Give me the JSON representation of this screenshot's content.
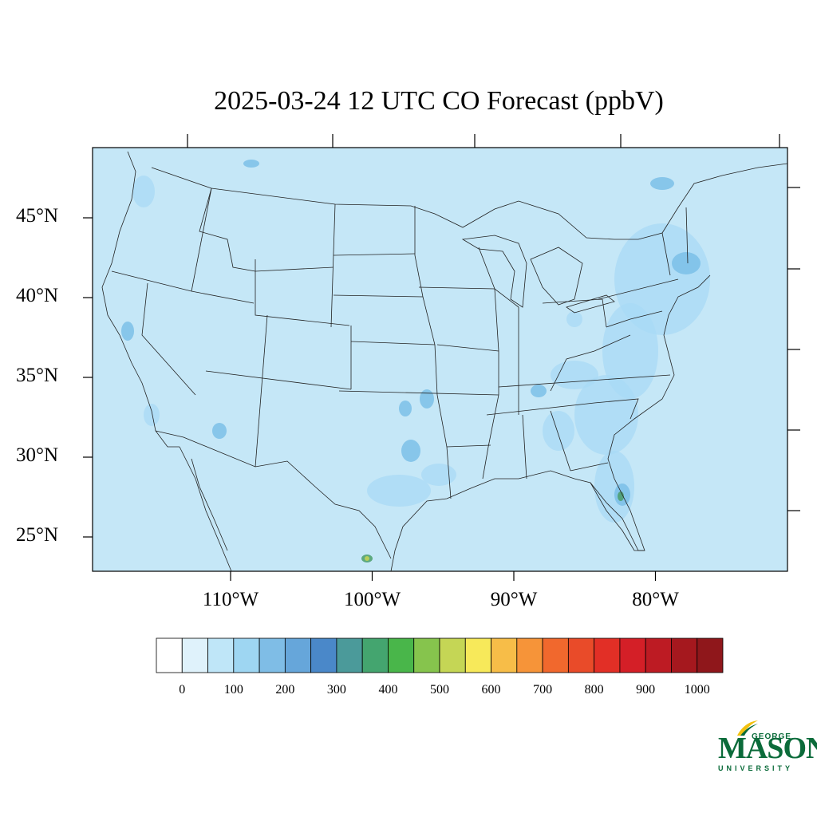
{
  "title": "2025-03-24 12 UTC CO Forecast (ppbV)",
  "map": {
    "background_color": "#c5e7f7",
    "plume_colors": [
      "#a8daf5",
      "#7bc0e8",
      "#4a9e6a",
      "#c5d655"
    ],
    "lat_labels": [
      {
        "lat": 45,
        "text": "45°N"
      },
      {
        "lat": 40,
        "text": "40°N"
      },
      {
        "lat": 35,
        "text": "35°N"
      },
      {
        "lat": 30,
        "text": "30°N"
      },
      {
        "lat": 25,
        "text": "25°N"
      }
    ],
    "lon_labels": [
      {
        "lon": -110,
        "text": "110°W"
      },
      {
        "lon": -100,
        "text": "100°W"
      },
      {
        "lon": -90,
        "text": "90°W"
      },
      {
        "lon": -80,
        "text": "80°W"
      }
    ]
  },
  "colorbar": {
    "colors": [
      "#ffffff",
      "#dff2fb",
      "#bfe6f8",
      "#9ed6f2",
      "#7fbde6",
      "#66a6da",
      "#4a88c9",
      "#4b9a9a",
      "#44a56f",
      "#49b64a",
      "#86c44d",
      "#c5d655",
      "#f7e95a",
      "#f7bd48",
      "#f69439",
      "#f1682d",
      "#e94b29",
      "#e22f26",
      "#d41f27",
      "#bd1b23",
      "#a5181e",
      "#8f171b"
    ],
    "labels": [
      "0",
      "100",
      "200",
      "300",
      "400",
      "500",
      "600",
      "700",
      "800",
      "900",
      "1000"
    ]
  },
  "logo": {
    "line1": "GEORGE",
    "line2": "MASON",
    "line3": "UNIVERSITY"
  }
}
